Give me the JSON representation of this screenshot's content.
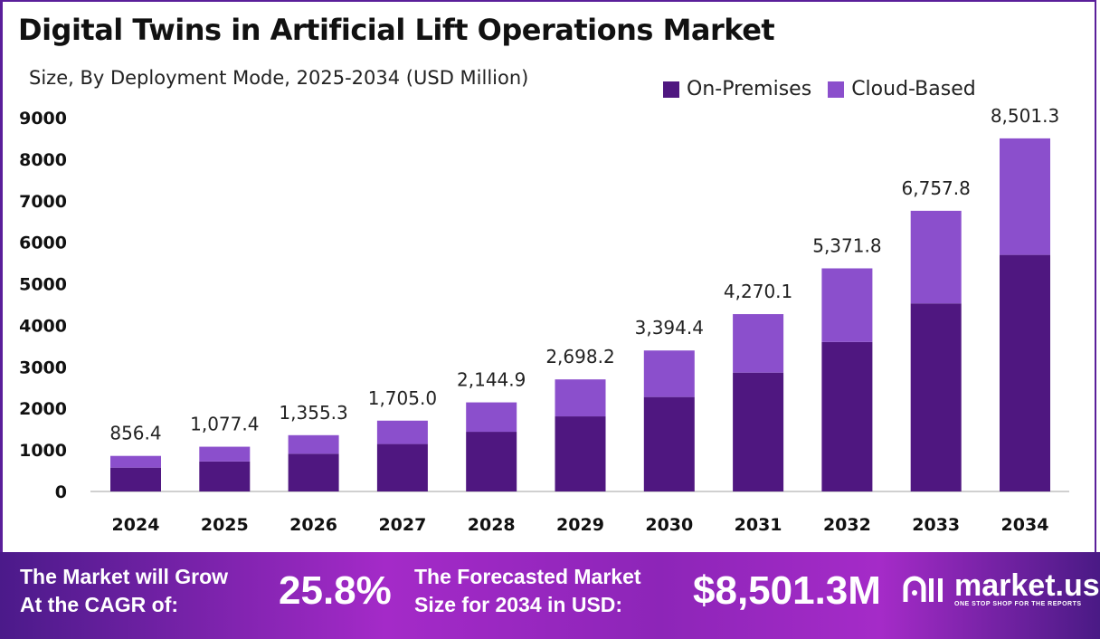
{
  "title": "Digital Twins in Artificial Lift Operations Market",
  "subtitle": "Size, By Deployment Mode, 2025-2034 (USD Million)",
  "colors": {
    "on_premises": "#4f1780",
    "cloud_based": "#8b4fcc",
    "axis": "#d0d0d0"
  },
  "chart_data": {
    "type": "bar",
    "stacked": true,
    "categories": [
      "2024",
      "2025",
      "2026",
      "2027",
      "2028",
      "2029",
      "2030",
      "2031",
      "2032",
      "2033",
      "2034"
    ],
    "series": [
      {
        "name": "On-Premises",
        "values": [
          573.8,
          721.9,
          908.1,
          1142.4,
          1437.1,
          1807.8,
          2274.2,
          2861.0,
          3599.1,
          4527.7,
          5695.9
        ]
      },
      {
        "name": "Cloud-Based",
        "values": [
          282.6,
          355.5,
          447.2,
          562.6,
          707.8,
          890.4,
          1120.2,
          1409.1,
          1772.7,
          2230.1,
          2805.4
        ]
      }
    ],
    "totals": [
      856.4,
      1077.4,
      1355.3,
      1705.0,
      2144.9,
      2698.2,
      3394.4,
      4270.1,
      5371.8,
      6757.8,
      8501.3
    ],
    "total_labels": [
      "856.4",
      "1,077.4",
      "1,355.3",
      "1,705.0",
      "2,144.9",
      "2,698.2",
      "3,394.4",
      "4,270.1",
      "5,371.8",
      "6,757.8",
      "8,501.3"
    ],
    "yticks": [
      "0",
      "1000",
      "2000",
      "3000",
      "4000",
      "5000",
      "6000",
      "7000",
      "8000",
      "9000"
    ],
    "ylim": [
      0,
      9000
    ],
    "grid": false,
    "legend": "top-right"
  },
  "footer": {
    "cagr_text_1": "The Market will Grow",
    "cagr_text_2": "At the CAGR of:",
    "cagr_value": "25.8%",
    "forecast_text_1": "The Forecasted Market",
    "forecast_text_2": "Size for 2034 in USD:",
    "forecast_value": "$8,501.3M",
    "logo_name": "market.us",
    "logo_tagline": "ONE STOP SHOP FOR THE REPORTS"
  }
}
